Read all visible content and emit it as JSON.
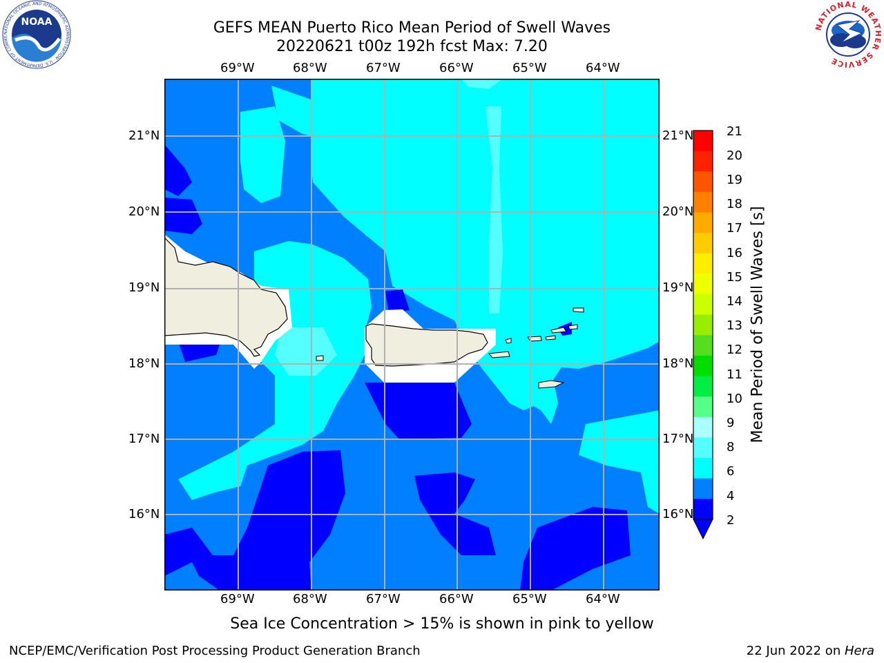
{
  "header": {
    "title_line1": "GEFS MEAN Puerto Rico Mean Period of Swell Waves",
    "title_line2": "20220621 t00z 192h fcst   Max: 7.20"
  },
  "logos": {
    "left_text": "NOAA",
    "left_ring_text": "NATIONAL OCEANIC AND ATMOSPHERIC ADMINISTRATION · U.S. DEPARTMENT OF COMMERCE",
    "right_ring_text": "NATIONAL WEATHER SERVICE"
  },
  "map": {
    "lon_labels": [
      "69°W",
      "68°W",
      "67°W",
      "66°W",
      "65°W",
      "64°W"
    ],
    "lat_labels": [
      "21°N",
      "20°N",
      "19°N",
      "18°N",
      "17°N",
      "16°N"
    ],
    "colors": {
      "band_2_4": "#0000ff",
      "band_4_6": "#0080ff",
      "band_6_8": "#00ffff",
      "band_8_9": "#55ffff",
      "land": "#efeedf",
      "mask": "#ffffff",
      "grid": "#b0b0b0"
    }
  },
  "colorbar": {
    "label": "Mean Period of Swell Waves [s]",
    "ticks": [
      "21",
      "20",
      "19",
      "18",
      "17",
      "16",
      "15",
      "14",
      "13",
      "12",
      "11",
      "10",
      "9",
      "8",
      "6",
      "4",
      "2"
    ],
    "colors": [
      "#ff0000",
      "#ff2200",
      "#ff5500",
      "#ff8000",
      "#ffaa00",
      "#ffcc00",
      "#ffee00",
      "#eeff00",
      "#ccff00",
      "#99ee00",
      "#55dd22",
      "#00dd00",
      "#00ee44",
      "#55ff88",
      "#aaffff",
      "#55ffff",
      "#00ffff",
      "#0080ff",
      "#0000ff"
    ]
  },
  "footer": {
    "sea_ice_note": "Sea Ice Concentration > 15% is shown in pink to yellow",
    "branch": "NCEP/EMC/Verification Post Processing Product Generation Branch",
    "date_prefix": "22 Jun 2022 on ",
    "machine": "Hera"
  }
}
